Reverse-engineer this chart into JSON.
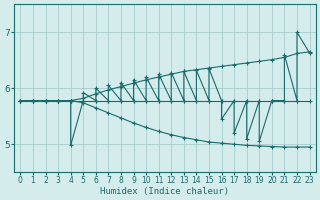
{
  "xlabel": "Humidex (Indice chaleur)",
  "ylabel": "",
  "xlim": [
    -0.5,
    23.5
  ],
  "ylim": [
    4.5,
    7.5
  ],
  "xticks": [
    0,
    1,
    2,
    3,
    4,
    5,
    6,
    7,
    8,
    9,
    10,
    11,
    12,
    13,
    14,
    15,
    16,
    17,
    18,
    19,
    20,
    21,
    22,
    23
  ],
  "yticks": [
    5,
    6,
    7
  ],
  "bg_color": "#d4ecec",
  "grid_color": "#a8cccc",
  "line_color": "#1a6b6b",
  "mean_x": [
    0,
    1,
    2,
    3,
    4,
    5,
    6,
    7,
    8,
    9,
    10,
    11,
    12,
    13,
    14,
    15,
    16,
    17,
    18,
    19,
    20,
    21,
    22,
    23
  ],
  "mean_y": [
    5.78,
    5.78,
    5.78,
    5.78,
    5.78,
    5.78,
    5.78,
    5.78,
    5.78,
    5.78,
    5.78,
    5.78,
    5.78,
    5.78,
    5.78,
    5.78,
    5.78,
    5.78,
    5.78,
    5.78,
    5.78,
    5.78,
    5.78,
    5.78
  ],
  "upper_x": [
    0,
    1,
    2,
    3,
    4,
    5,
    6,
    7,
    8,
    9,
    10,
    11,
    12,
    13,
    14,
    15,
    16,
    17,
    18,
    19,
    20,
    21,
    22,
    23
  ],
  "upper_y": [
    5.78,
    5.78,
    5.78,
    5.78,
    5.78,
    5.82,
    5.9,
    5.97,
    6.03,
    6.09,
    6.15,
    6.2,
    6.25,
    6.3,
    6.33,
    6.36,
    6.39,
    6.42,
    6.45,
    6.48,
    6.51,
    6.55,
    6.62,
    6.65
  ],
  "lower_x": [
    0,
    1,
    2,
    3,
    4,
    5,
    6,
    7,
    8,
    9,
    10,
    11,
    12,
    13,
    14,
    15,
    16,
    17,
    18,
    19,
    20,
    21,
    22,
    23
  ],
  "lower_y": [
    5.78,
    5.78,
    5.78,
    5.78,
    5.78,
    5.74,
    5.65,
    5.56,
    5.47,
    5.38,
    5.3,
    5.23,
    5.17,
    5.12,
    5.08,
    5.04,
    5.02,
    5.0,
    4.98,
    4.97,
    4.96,
    4.95,
    4.95,
    4.95
  ],
  "zz_x": [
    0,
    1,
    2,
    3,
    4,
    4,
    5,
    5,
    6,
    6,
    7,
    7,
    8,
    8,
    9,
    9,
    10,
    10,
    11,
    11,
    12,
    12,
    13,
    13,
    14,
    14,
    15,
    15,
    16,
    16,
    17,
    17,
    18,
    18,
    19,
    19,
    20,
    20,
    21,
    21,
    22,
    22,
    23
  ],
  "zz_y": [
    5.78,
    5.78,
    5.78,
    5.78,
    5.78,
    4.98,
    5.78,
    5.92,
    5.78,
    6.0,
    5.78,
    6.05,
    5.78,
    6.1,
    5.78,
    6.15,
    5.78,
    6.2,
    5.78,
    6.25,
    5.78,
    6.28,
    5.78,
    6.3,
    5.78,
    6.32,
    5.78,
    6.35,
    5.78,
    5.45,
    5.78,
    5.2,
    5.78,
    5.1,
    5.78,
    5.05,
    5.78,
    5.78,
    5.78,
    6.6,
    5.78,
    7.0,
    6.63
  ],
  "marker": "+",
  "marker_size": 3,
  "line_width": 0.8
}
